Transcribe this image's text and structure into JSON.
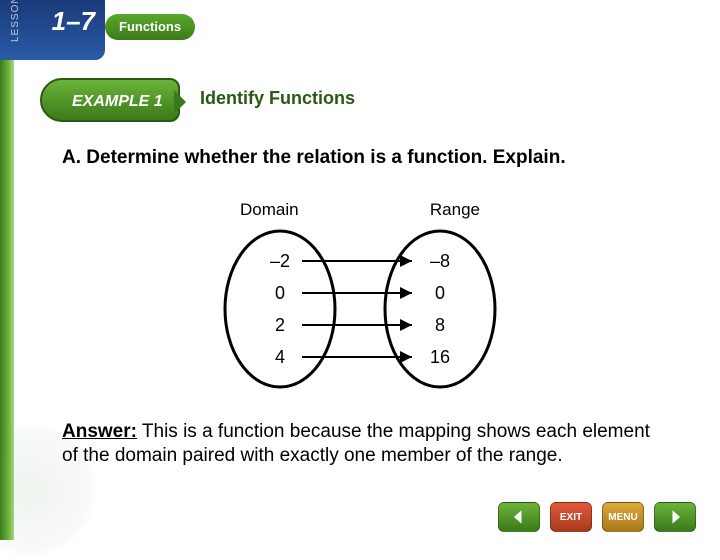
{
  "lesson": {
    "label": "LESSON",
    "number": "1–7"
  },
  "section_title": "Functions",
  "example": {
    "badge": "EXAMPLE 1",
    "title": "Identify Functions"
  },
  "question": {
    "part": "A.",
    "text": "Determine whether the relation is a function. Explain."
  },
  "mapping": {
    "domain_label": "Domain",
    "range_label": "Range",
    "domain_values": [
      "–2",
      "0",
      "2",
      "4"
    ],
    "range_values": [
      "–8",
      "0",
      "8",
      "16"
    ],
    "edges": [
      [
        0,
        0
      ],
      [
        1,
        1
      ],
      [
        2,
        2
      ],
      [
        3,
        3
      ]
    ],
    "ellipse_stroke": "#000000",
    "ellipse_stroke_width": 3,
    "text_color": "#000000",
    "font_size": 18
  },
  "answer": {
    "label": "Answer:",
    "text": "This is a function because the mapping shows each element of the domain paired with exactly one member of the range."
  },
  "nav": {
    "back": "◀",
    "exit": "EXIT",
    "menu": "MENU",
    "forward": "▶"
  },
  "colors": {
    "green_dark": "#3b7a1a",
    "green_light": "#6bb33a",
    "blue_dark": "#1a3a7a",
    "title_green": "#2a5a12"
  }
}
